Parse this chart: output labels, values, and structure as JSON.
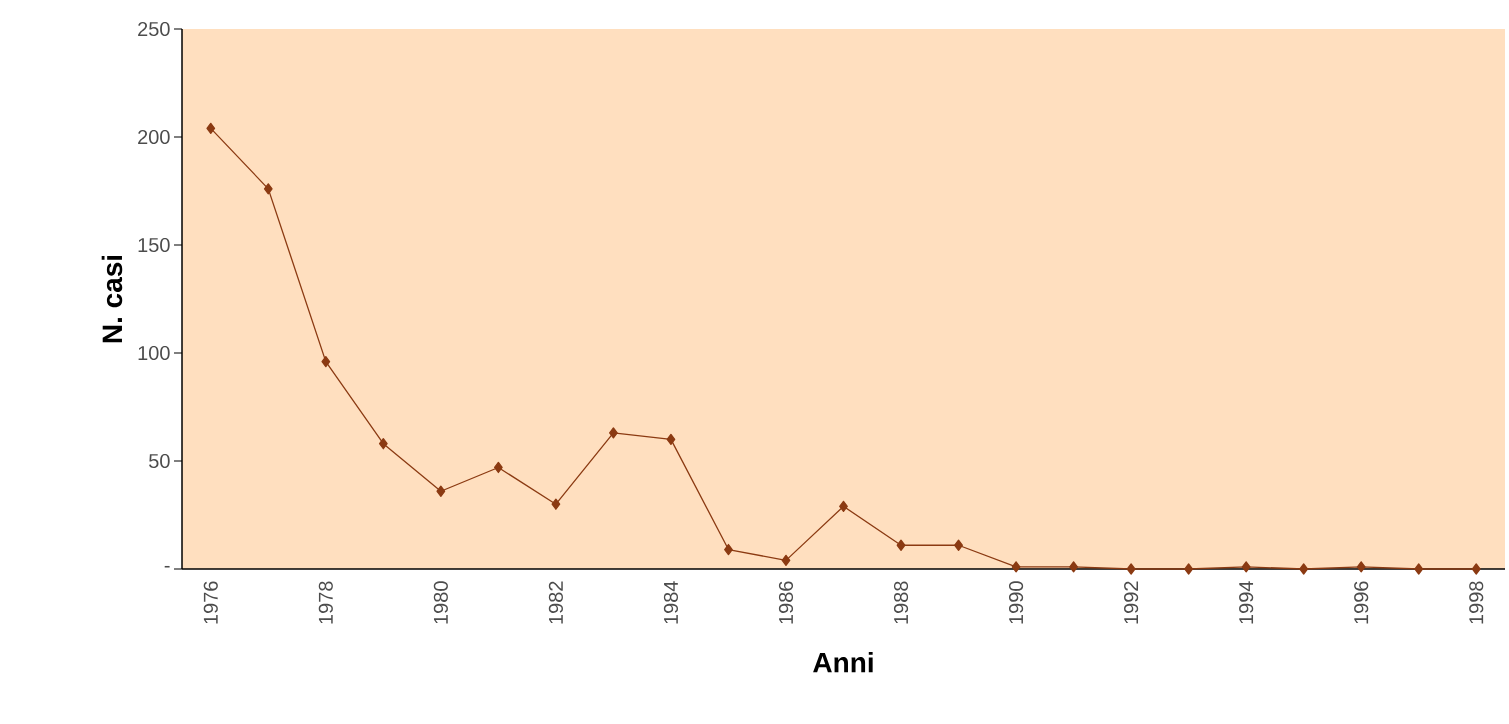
{
  "chart_data": {
    "type": "line",
    "xlabel": "Anni",
    "ylabel": "N. casi",
    "categories": [
      "1976",
      null,
      "1978",
      null,
      "1980",
      null,
      "1982",
      null,
      "1984",
      null,
      "1986",
      null,
      "1988",
      null,
      "1990",
      null,
      "1992",
      null,
      "1994",
      null,
      "1996",
      null,
      "1998"
    ],
    "series": [
      {
        "color": "#8b3a12",
        "values": [
          204,
          176,
          96,
          58,
          36,
          47,
          30,
          63,
          60,
          9,
          4,
          29,
          11,
          11,
          1,
          1,
          0,
          0,
          1,
          0,
          1,
          0,
          0
        ]
      }
    ],
    "ylim": [
      0,
      250
    ],
    "yticks": [
      {
        "value": 0,
        "label": "-"
      },
      50,
      100,
      150,
      200,
      250
    ],
    "marker": "diamond",
    "line_style": "solid",
    "grid": false
  }
}
